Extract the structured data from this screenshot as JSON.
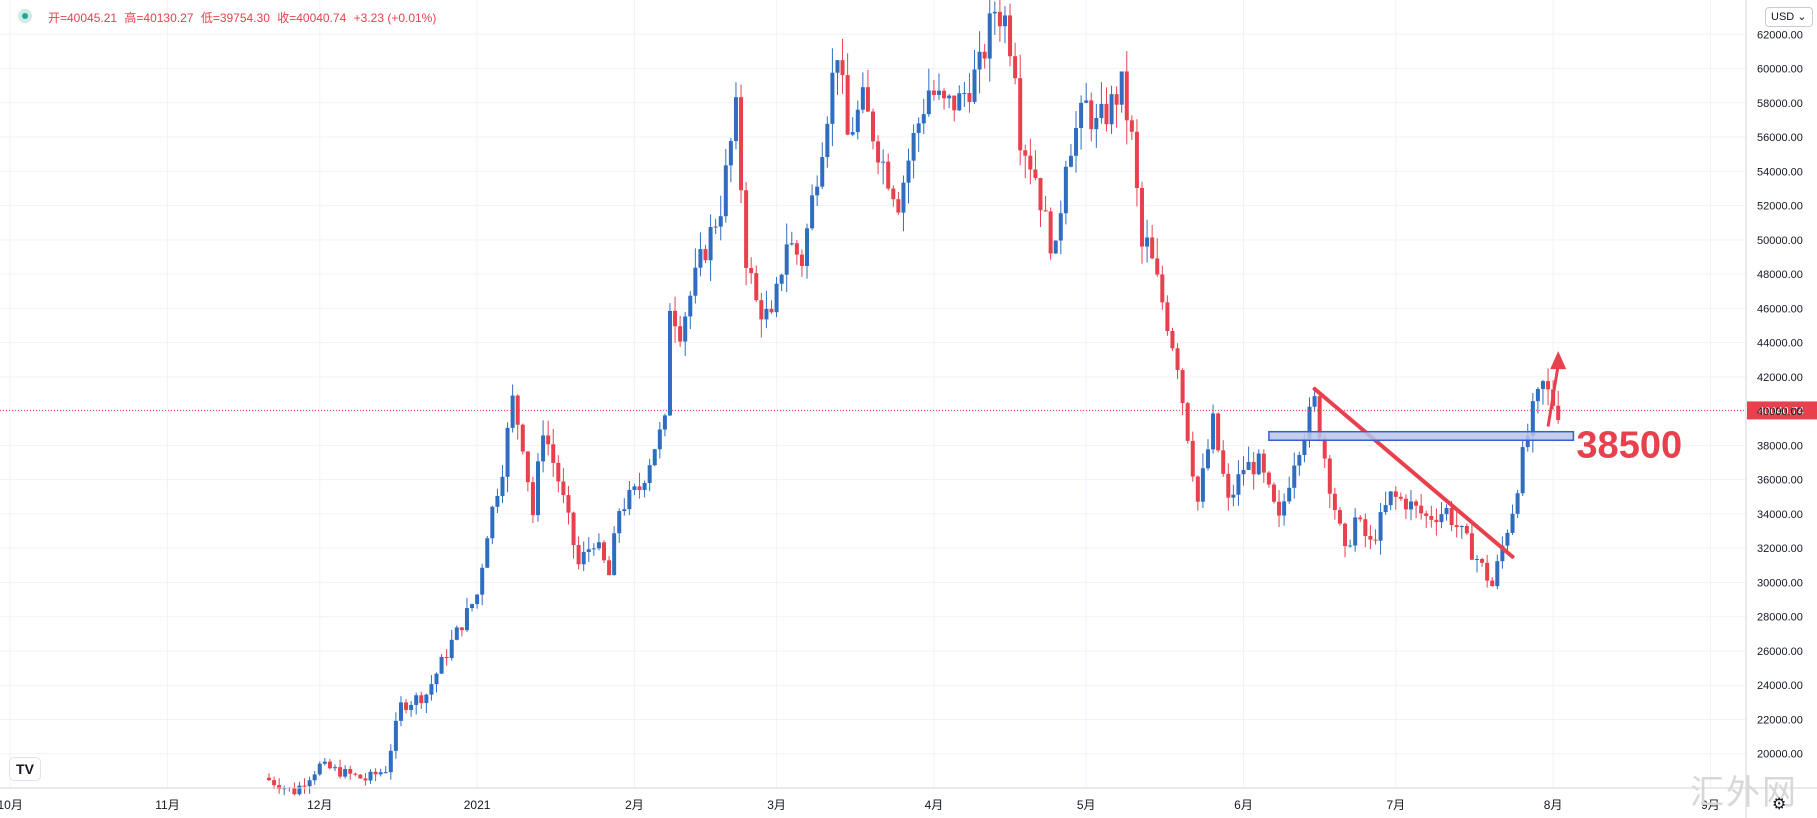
{
  "legend": {
    "open_label": "开=40045.21",
    "high_label": "高=40130.27",
    "low_label": "低=39754.30",
    "close_label": "收=40040.74",
    "change_label": "+3.23 (+0.01%)"
  },
  "currency": {
    "label": "USD"
  },
  "logo": {
    "text": "TV"
  },
  "watermark": {
    "text": "汇外网"
  },
  "colors": {
    "up": "#2f6dc0",
    "down": "#e8404d",
    "price_line": "#e8404d",
    "annotation": "#e8404d",
    "support_fill": "#b8c6ea"
  },
  "chart_data": {
    "type": "candlestick",
    "symbol_currency": "USD",
    "ylim": [
      18000,
      64000
    ],
    "y_ticks": [
      20000,
      22000,
      24000,
      26000,
      28000,
      30000,
      32000,
      34000,
      36000,
      38000,
      40000,
      42000,
      44000,
      46000,
      48000,
      50000,
      52000,
      54000,
      56000,
      58000,
      60000,
      62000
    ],
    "y_tick_labels": [
      "20000.00",
      "22000.00",
      "24000.00",
      "26000.00",
      "28000.00",
      "30000.00",
      "32000.00",
      "34000.00",
      "36000.00",
      "38000.00",
      "40000.00",
      "42000.00",
      "44000.00",
      "46000.00",
      "48000.00",
      "50000.00",
      "52000.00",
      "54000.00",
      "56000.00",
      "58000.00",
      "60000.00",
      "62000.00"
    ],
    "x_ticks": [
      {
        "date": "2020-10-01",
        "label": "10月"
      },
      {
        "date": "2020-11-01",
        "label": "11月"
      },
      {
        "date": "2020-12-01",
        "label": "12月"
      },
      {
        "date": "2021-01-01",
        "label": "2021"
      },
      {
        "date": "2021-02-01",
        "label": "2月"
      },
      {
        "date": "2021-03-01",
        "label": "3月"
      },
      {
        "date": "2021-04-01",
        "label": "4月"
      },
      {
        "date": "2021-05-01",
        "label": "5月"
      },
      {
        "date": "2021-06-01",
        "label": "6月"
      },
      {
        "date": "2021-07-01",
        "label": "7月"
      },
      {
        "date": "2021-08-01",
        "label": "8月"
      },
      {
        "date": "2021-09-01",
        "label": "9月"
      }
    ],
    "last_price": 40040.74,
    "last_price_label": "40040.74",
    "support_level": 38500,
    "support_label": "38500",
    "price_path": [
      [
        "2020-11-20",
        18600
      ],
      [
        "2020-11-26",
        17800
      ],
      [
        "2020-12-01",
        19300
      ],
      [
        "2020-12-10",
        18500
      ],
      [
        "2020-12-14",
        19100
      ],
      [
        "2020-12-17",
        22800
      ],
      [
        "2020-12-22",
        23500
      ],
      [
        "2020-12-27",
        26500
      ],
      [
        "2021-01-01",
        29300
      ],
      [
        "2021-01-03",
        33000
      ],
      [
        "2021-01-06",
        36800
      ],
      [
        "2021-01-08",
        40600
      ],
      [
        "2021-01-10",
        38200
      ],
      [
        "2021-01-12",
        34000
      ],
      [
        "2021-01-14",
        39100
      ],
      [
        "2021-01-17",
        36000
      ],
      [
        "2021-01-21",
        31000
      ],
      [
        "2021-01-24",
        32500
      ],
      [
        "2021-01-27",
        30400
      ],
      [
        "2021-01-29",
        34300
      ],
      [
        "2021-02-02",
        35500
      ],
      [
        "2021-02-05",
        38000
      ],
      [
        "2021-02-07",
        39200
      ],
      [
        "2021-02-08",
        46300
      ],
      [
        "2021-02-10",
        44800
      ],
      [
        "2021-02-14",
        48700
      ],
      [
        "2021-02-18",
        52000
      ],
      [
        "2021-02-21",
        57400
      ],
      [
        "2021-02-23",
        49000
      ],
      [
        "2021-02-25",
        46300
      ],
      [
        "2021-02-28",
        45200
      ],
      [
        "2021-03-03",
        50000
      ],
      [
        "2021-03-06",
        48800
      ],
      [
        "2021-03-10",
        55800
      ],
      [
        "2021-03-13",
        61200
      ],
      [
        "2021-03-15",
        56000
      ],
      [
        "2021-03-18",
        58000
      ],
      [
        "2021-03-22",
        54500
      ],
      [
        "2021-03-25",
        52300
      ],
      [
        "2021-03-28",
        55900
      ],
      [
        "2021-03-31",
        58800
      ],
      [
        "2021-04-03",
        57800
      ],
      [
        "2021-04-06",
        58100
      ],
      [
        "2021-04-10",
        60000
      ],
      [
        "2021-04-13",
        63500
      ],
      [
        "2021-04-15",
        62900
      ],
      [
        "2021-04-17",
        60300
      ],
      [
        "2021-04-18",
        56200
      ],
      [
        "2021-04-21",
        53800
      ],
      [
        "2021-04-23",
        51000
      ],
      [
        "2021-04-25",
        49100
      ],
      [
        "2021-04-27",
        55000
      ],
      [
        "2021-05-01",
        57800
      ],
      [
        "2021-05-03",
        56600
      ],
      [
        "2021-05-05",
        57400
      ],
      [
        "2021-05-08",
        58900
      ],
      [
        "2021-05-10",
        55800
      ],
      [
        "2021-05-12",
        49500
      ],
      [
        "2021-05-13",
        49700
      ],
      [
        "2021-05-16",
        46400
      ],
      [
        "2021-05-19",
        42900
      ],
      [
        "2021-05-20",
        40700
      ],
      [
        "2021-05-23",
        34700
      ],
      [
        "2021-05-26",
        39300
      ],
      [
        "2021-05-29",
        34600
      ],
      [
        "2021-06-01",
        36700
      ],
      [
        "2021-06-04",
        36900
      ],
      [
        "2021-06-08",
        33500
      ],
      [
        "2021-06-11",
        37300
      ],
      [
        "2021-06-15",
        40500
      ],
      [
        "2021-06-18",
        35800
      ],
      [
        "2021-06-21",
        31600
      ],
      [
        "2021-06-23",
        33700
      ],
      [
        "2021-06-26",
        32200
      ],
      [
        "2021-06-30",
        35000
      ],
      [
        "2021-07-03",
        34700
      ],
      [
        "2021-07-07",
        33800
      ],
      [
        "2021-07-11",
        34200
      ],
      [
        "2021-07-14",
        32800
      ],
      [
        "2021-07-17",
        31400
      ],
      [
        "2021-07-20",
        29800
      ],
      [
        "2021-07-22",
        32100
      ],
      [
        "2021-07-24",
        34300
      ],
      [
        "2021-07-26",
        37300
      ],
      [
        "2021-07-28",
        39900
      ],
      [
        "2021-07-30",
        41500
      ],
      [
        "2021-08-02",
        40040
      ]
    ],
    "annotations": [
      {
        "type": "trendline",
        "from": [
          "2021-06-15",
          41300
        ],
        "to": [
          "2021-07-24",
          31500
        ]
      },
      {
        "type": "rectangle",
        "from_date": "2021-06-06",
        "to_date": "2021-08-05",
        "from_price": 38300,
        "to_price": 38800
      },
      {
        "type": "arrow",
        "from": [
          "2021-07-31",
          39100
        ],
        "to": [
          "2021-08-02",
          43500
        ]
      }
    ]
  }
}
